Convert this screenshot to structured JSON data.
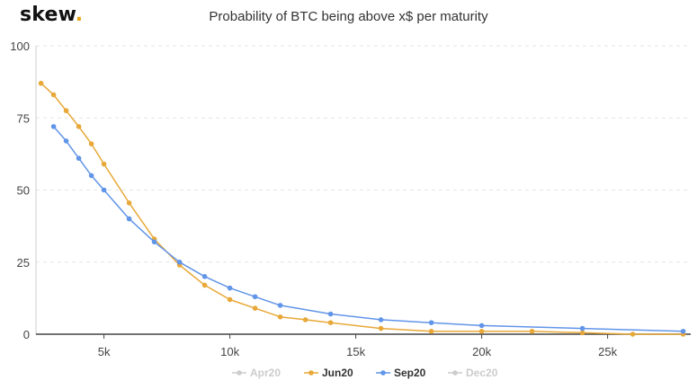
{
  "brand": {
    "name": "skew",
    "dot": "."
  },
  "colors": {
    "jun": "#e8a838",
    "sep": "#6195e8",
    "inactive": "#cccccc",
    "grid": "#e6e6e6",
    "axis": "#444444"
  },
  "chart_data": {
    "type": "line",
    "title": "Probability of BTC being above x$ per maturity",
    "xlabel": "",
    "ylabel": "",
    "xlim": [
      2300,
      28300
    ],
    "ylim": [
      0,
      100
    ],
    "xticks": [
      5000,
      10000,
      15000,
      20000,
      25000
    ],
    "xtick_labels": [
      "5k",
      "10k",
      "15k",
      "20k",
      "25k"
    ],
    "yticks": [
      0,
      25,
      50,
      75,
      100
    ],
    "ytick_labels": [
      "0",
      "25",
      "50",
      "75",
      "100"
    ],
    "grid": "horizontal dashed",
    "legend_position": "bottom-center",
    "series": [
      {
        "name": "Apr20",
        "key": "apr",
        "visible": false,
        "x": [],
        "y": []
      },
      {
        "name": "Jun20",
        "key": "jun",
        "visible": true,
        "x": [
          2500,
          3000,
          3500,
          4000,
          4500,
          5000,
          6000,
          7000,
          8000,
          9000,
          10000,
          11000,
          12000,
          13000,
          14000,
          16000,
          18000,
          20000,
          22000,
          24000,
          26000,
          28000
        ],
        "y": [
          87,
          83,
          77.5,
          72,
          66,
          59,
          45.5,
          33,
          24,
          17,
          12,
          9,
          6,
          5,
          4,
          2,
          1,
          1,
          1,
          0.5,
          0,
          0
        ]
      },
      {
        "name": "Sep20",
        "key": "sep",
        "visible": true,
        "x": [
          3000,
          3500,
          4000,
          4500,
          5000,
          6000,
          7000,
          8000,
          9000,
          10000,
          11000,
          12000,
          14000,
          16000,
          18000,
          20000,
          24000,
          28000
        ],
        "y": [
          72,
          67,
          61,
          55,
          50,
          40,
          32,
          25,
          20,
          16,
          13,
          10,
          7,
          5,
          4,
          3,
          2,
          1
        ]
      },
      {
        "name": "Dec20",
        "key": "dec",
        "visible": false,
        "x": [],
        "y": []
      }
    ]
  }
}
